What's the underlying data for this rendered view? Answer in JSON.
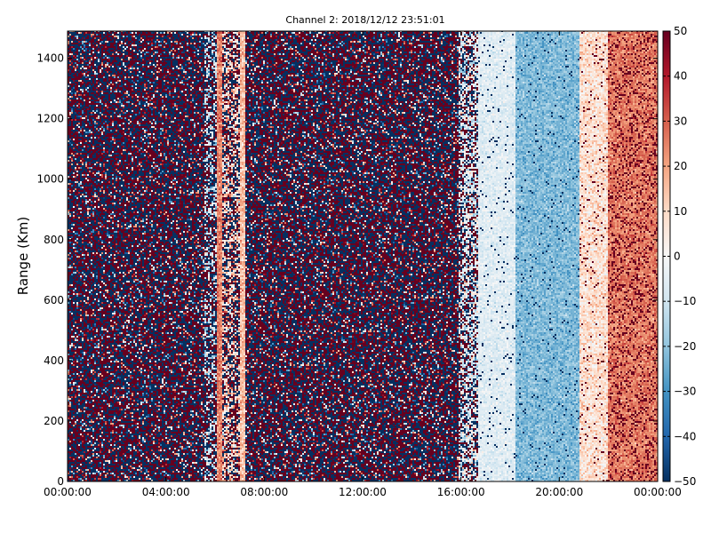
{
  "chart_data": {
    "type": "heatmap",
    "title": "Channel 2: 2018/12/12 23:51:01",
    "xlabel": "",
    "ylabel": "Range (Km)",
    "x_ticks": [
      "00:00:00",
      "04:00:00",
      "08:00:00",
      "12:00:00",
      "16:00:00",
      "20:00:00",
      "00:00:00"
    ],
    "y_ticks": [
      0,
      200,
      400,
      600,
      800,
      1000,
      1200,
      1400
    ],
    "ylim": [
      0,
      1490
    ],
    "xlim_hours": [
      0,
      24
    ],
    "colorbar": {
      "min": -50,
      "max": 50,
      "ticks": [
        -50,
        -40,
        -30,
        -20,
        -10,
        0,
        10,
        20,
        30,
        40,
        50
      ],
      "colormap": "RdBu_r",
      "low_color": "#053061",
      "mid_color": "#f7f7f7",
      "high_color": "#67001f"
    },
    "grid": false,
    "time_profile": [
      {
        "start_h": 0.0,
        "end_h": 5.6,
        "pattern": "noisy mixed red/blue/white, mostly saturated"
      },
      {
        "start_h": 5.6,
        "end_h": 6.1,
        "pattern": "mixed with light blue streaks"
      },
      {
        "start_h": 6.1,
        "end_h": 6.3,
        "pattern": "salmon/red vertical band (~20-35)"
      },
      {
        "start_h": 6.3,
        "end_h": 7.0,
        "pattern": "mixed light red/blue noise"
      },
      {
        "start_h": 7.0,
        "end_h": 7.2,
        "pattern": "light pinkish vertical band"
      },
      {
        "start_h": 7.2,
        "end_h": 15.9,
        "pattern": "noisy mixed dark red / dark blue, saturated"
      },
      {
        "start_h": 15.9,
        "end_h": 16.7,
        "pattern": "transition, mixed light colors"
      },
      {
        "start_h": 16.7,
        "end_h": 18.2,
        "pattern": "near zero, white / very light blue"
      },
      {
        "start_h": 18.2,
        "end_h": 20.8,
        "pattern": "light-to-medium blue (-10 to -30)"
      },
      {
        "start_h": 20.8,
        "end_h": 22.0,
        "pattern": "white to light salmon (0 to 20)"
      },
      {
        "start_h": 22.0,
        "end_h": 24.0,
        "pattern": "salmon/orange-red (20 to 35) with dark red speckles"
      }
    ]
  }
}
